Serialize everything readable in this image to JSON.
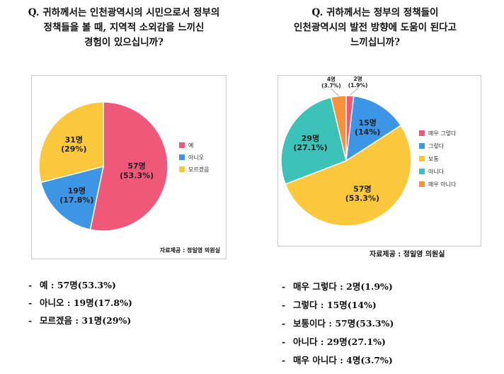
{
  "left": {
    "question": "Q. 귀하께서는 인천광역시의 시민으로서 정부의\n정책들을 볼 때, 지역적 소외감을 느끼신\n경험이 있으십니까?",
    "source": "자료제공 : 정일영 의원실",
    "summary": [
      "예 : 57명(53.3%)",
      "아니오 : 19명(17.8%)",
      "모르겠음 : 31명(29%)"
    ]
  },
  "right": {
    "question": "Q. 귀하께서는 정부의 정책들이\n인천광역시의 발전 방향에 도움이 된다고\n느끼십니까?",
    "source": "자료제공 : 정일영 의원실",
    "summary": [
      "매우 그렇다 : 2명(1.9%)",
      "그렇다 : 15명(14%)",
      "보통이다 : 57명(53.3%)",
      "아니다 : 29명(27.1%)",
      "매우 아니다 : 4명(3.7%)"
    ]
  },
  "summary_dash": "-",
  "chart_data": [
    {
      "type": "pie",
      "categories": [
        "예",
        "아니오",
        "모르겠음"
      ],
      "values": [
        57,
        19,
        31
      ],
      "count_labels": [
        "57명",
        "19명",
        "31명"
      ],
      "percent_labels": [
        "(53.3%)",
        "(17.8%)",
        "(29%)"
      ],
      "colors": [
        "#f0587a",
        "#3d95e6",
        "#fbc83c"
      ],
      "legend_position": "right"
    },
    {
      "type": "pie",
      "categories": [
        "매우 그렇다",
        "그렇다",
        "보통",
        "아니다",
        "매우 아니다"
      ],
      "values": [
        2,
        15,
        57,
        29,
        4
      ],
      "count_labels": [
        "2명",
        "15명",
        "57명",
        "29명",
        "4명"
      ],
      "percent_labels": [
        "(1.9%)",
        "(14%)",
        "(53.3%)",
        "(27.1%)",
        "(3.7%)"
      ],
      "colors": [
        "#f0587a",
        "#3d95e6",
        "#fbc83c",
        "#3cc2b8",
        "#f7923a"
      ],
      "legend_position": "right"
    }
  ]
}
